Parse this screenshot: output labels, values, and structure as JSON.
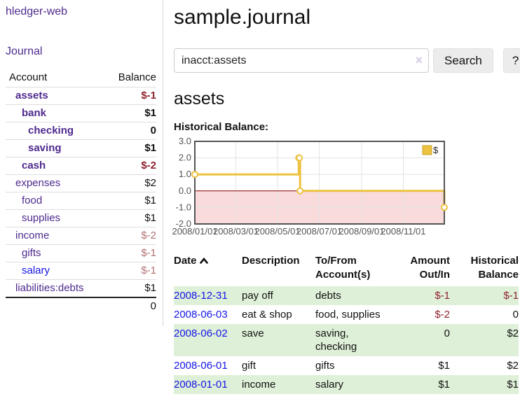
{
  "sidebar": {
    "brand": "hledger-web",
    "journal_link": "Journal",
    "accounts_table": {
      "headers": {
        "account": "Account",
        "balance": "Balance"
      },
      "rows": [
        {
          "name": "assets",
          "balance": "$-1",
          "depth": 1,
          "bold": true,
          "balance_tone": "neg-strong"
        },
        {
          "name": "bank",
          "balance": "$1",
          "depth": 2,
          "bold": true,
          "balance_tone": ""
        },
        {
          "name": "checking",
          "balance": "0",
          "depth": 3,
          "bold": true,
          "balance_tone": ""
        },
        {
          "name": "saving",
          "balance": "$1",
          "depth": 3,
          "bold": true,
          "balance_tone": ""
        },
        {
          "name": "cash",
          "balance": "$-2",
          "depth": 2,
          "bold": true,
          "balance_tone": "neg-strong"
        },
        {
          "name": "expenses",
          "balance": "$2",
          "depth": 1,
          "bold": false,
          "balance_tone": ""
        },
        {
          "name": "food",
          "balance": "$1",
          "depth": 2,
          "bold": false,
          "balance_tone": ""
        },
        {
          "name": "supplies",
          "balance": "$1",
          "depth": 2,
          "bold": false,
          "balance_tone": ""
        },
        {
          "name": "income",
          "balance": "$-2",
          "depth": 1,
          "bold": false,
          "balance_tone": "neg-soft"
        },
        {
          "name": "gifts",
          "balance": "$-1",
          "depth": 2,
          "bold": false,
          "balance_tone": "neg-soft"
        },
        {
          "name": "salary",
          "balance": "$-1",
          "depth": 2,
          "bold": false,
          "balance_tone": "neg-soft",
          "link_blue": true
        },
        {
          "name": "liabilities:debts",
          "balance": "$1",
          "depth": 1,
          "bold": false,
          "balance_tone": ""
        }
      ],
      "total": "0"
    }
  },
  "header": {
    "title": "sample.journal"
  },
  "search": {
    "value": "inacct:assets",
    "clear_icon": "×",
    "button_label": "Search",
    "help_label": "?"
  },
  "account_page": {
    "heading": "assets",
    "chart_label": "Historical Balance:"
  },
  "chart_data": {
    "type": "line",
    "step": true,
    "title": "Historical Balance",
    "legend": [
      {
        "label": "$",
        "color": "#edc240"
      }
    ],
    "legend_position": "top-right",
    "x_range": [
      "2008-01-01",
      "2008-12-31"
    ],
    "points": [
      [
        "2008-01-01",
        1
      ],
      [
        "2008-06-01",
        2
      ],
      [
        "2008-06-02",
        2
      ],
      [
        "2008-06-03",
        0
      ],
      [
        "2008-12-31",
        -1
      ]
    ],
    "ylim": [
      -2,
      3
    ],
    "yticks": [
      3.0,
      2.0,
      1.0,
      0.0,
      -1.0,
      -2.0
    ],
    "xticks": [
      "2008/01/01",
      "2008/03/01",
      "2008/05/01",
      "2008/07/01",
      "2008/09/01",
      "2008/11/01"
    ],
    "grid": true,
    "colors": {
      "line": "#edc240",
      "marker_fill": "#ffffff",
      "negative_region_fill": "#f9dbdb",
      "zero_line": "#8b0000",
      "border": "#545454",
      "gridline": "#e3e3e3",
      "axis_text": "#545454"
    }
  },
  "register_table": {
    "headers": {
      "date": "Date",
      "sort_icon": "chevron-up",
      "description": "Description",
      "account": "To/From Account(s)",
      "amount": "Amount Out/In",
      "balance": "Historical Balance"
    },
    "rows": [
      {
        "date": "2008-12-31",
        "description": "pay off",
        "accounts": "debts",
        "amount": "$-1",
        "balance": "$-1",
        "amount_tone": "neg-strong",
        "balance_tone": "neg-strong",
        "shaded": true
      },
      {
        "date": "2008-06-03",
        "description": "eat & shop",
        "accounts": "food, supplies",
        "amount": "$-2",
        "balance": "0",
        "amount_tone": "neg-strong",
        "balance_tone": "",
        "shaded": false
      },
      {
        "date": "2008-06-02",
        "description": "save",
        "accounts": "saving, checking",
        "amount": "0",
        "balance": "$2",
        "amount_tone": "",
        "balance_tone": "",
        "shaded": true
      },
      {
        "date": "2008-06-01",
        "description": "gift",
        "accounts": "gifts",
        "amount": "$1",
        "balance": "$2",
        "amount_tone": "",
        "balance_tone": "",
        "shaded": false
      },
      {
        "date": "2008-01-01",
        "description": "income",
        "accounts": "salary",
        "amount": "$1",
        "balance": "$1",
        "amount_tone": "",
        "balance_tone": "",
        "shaded": true
      }
    ]
  },
  "colors": {
    "link_purple": "#4e2a8e",
    "link_blue": "#1515e6",
    "negative_strong": "#8e232e",
    "negative_soft": "#b37172",
    "row_shade_green": "#dff0d8",
    "button_bg": "#ececec"
  }
}
